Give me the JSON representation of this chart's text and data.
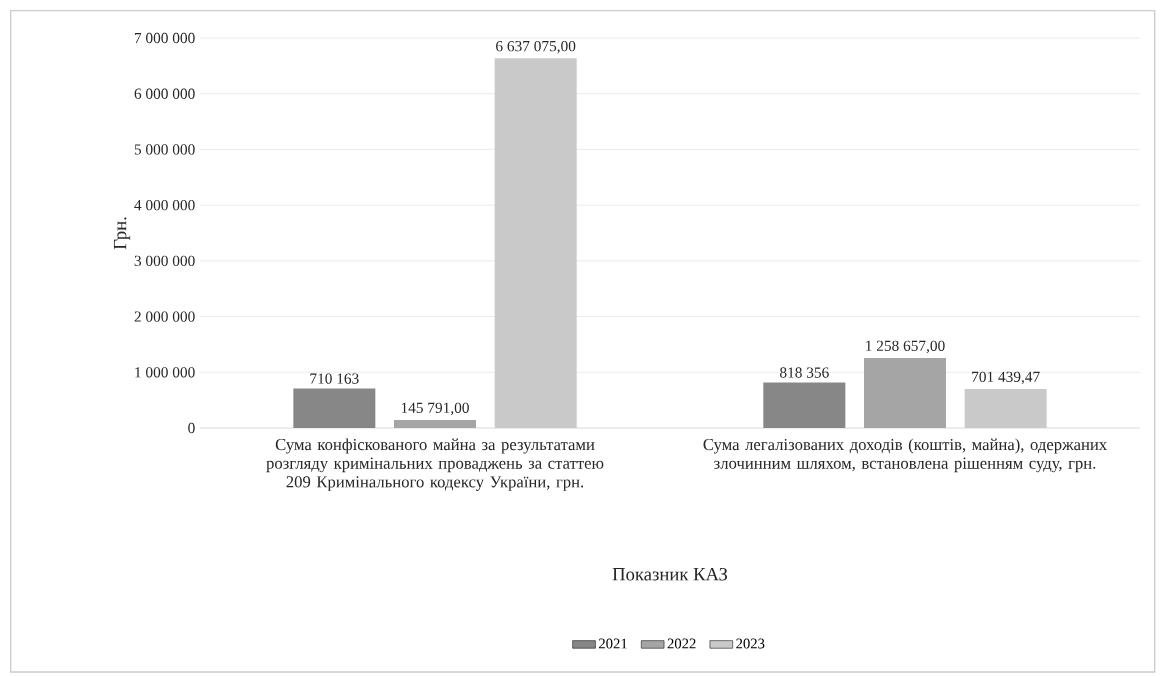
{
  "chart_data": {
    "type": "bar",
    "xlabel": "Показник КАЗ",
    "ylabel": "Грн.",
    "categories": [
      "Сума конфіскованого майна за результатами розгляду кримінальних проваджень за статтею 209 Кримінального кодексу України, грн.",
      "Сума легалізованих доходів (коштів, майна), одержаних злочинним шляхом, встановлена рішенням суду, грн."
    ],
    "series": [
      {
        "name": "2021",
        "color": "#878787",
        "values": [
          710163,
          818356
        ],
        "value_labels": [
          "710 163",
          "818 356"
        ]
      },
      {
        "name": "2022",
        "color": "#a5a5a5",
        "values": [
          145791.0,
          1258657.0
        ],
        "value_labels": [
          "145 791,00",
          "1 258 657,00"
        ]
      },
      {
        "name": "2023",
        "color": "#c9c9c9",
        "values": [
          6637075.0,
          701439.47
        ],
        "value_labels": [
          "6 637 075,00",
          "701 439,47"
        ]
      }
    ],
    "ylim": [
      0,
      7000000
    ],
    "yticks": [
      0,
      {
        "value": 1000000,
        "label": "1 000 000"
      },
      {
        "value": 2000000,
        "label": "2 000 000"
      },
      {
        "value": 3000000,
        "label": "3 000 000"
      },
      {
        "value": 4000000,
        "label": "4 000 000"
      },
      {
        "value": 5000000,
        "label": "5 000 000"
      },
      {
        "value": 6000000,
        "label": "6 000 000"
      },
      {
        "value": 7000000,
        "label": "7 000 000"
      }
    ],
    "grid": "y",
    "legend": "bottom"
  }
}
